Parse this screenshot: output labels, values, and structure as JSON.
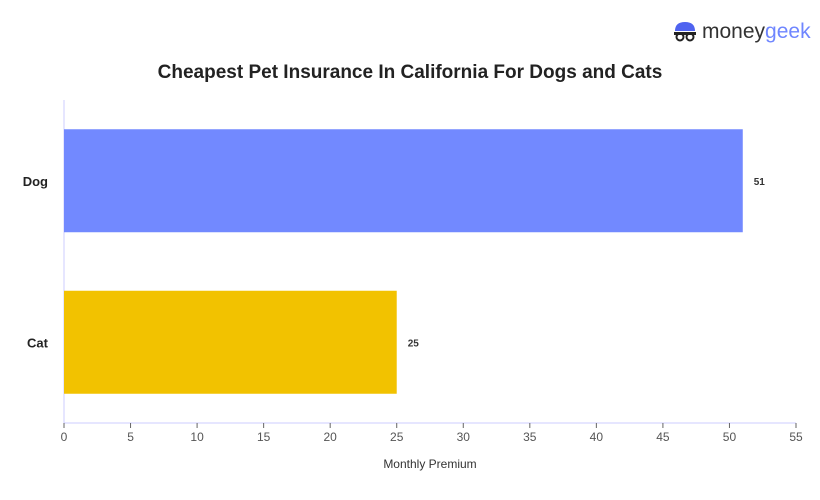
{
  "logo": {
    "part1": "money",
    "part2": "geek"
  },
  "chart_data": {
    "type": "bar",
    "orientation": "horizontal",
    "title": "Cheapest Pet Insurance In California For Dogs and Cats",
    "xlabel": "Monthly Premium",
    "ylabel": "",
    "categories": [
      "Dog",
      "Cat"
    ],
    "values": [
      51,
      25
    ],
    "colors": [
      "#7289ff",
      "#f2c200"
    ],
    "xlim": [
      0,
      55
    ],
    "xticks": [
      0,
      5,
      10,
      15,
      20,
      25,
      30,
      35,
      40,
      45,
      50,
      55
    ],
    "grid": false
  }
}
